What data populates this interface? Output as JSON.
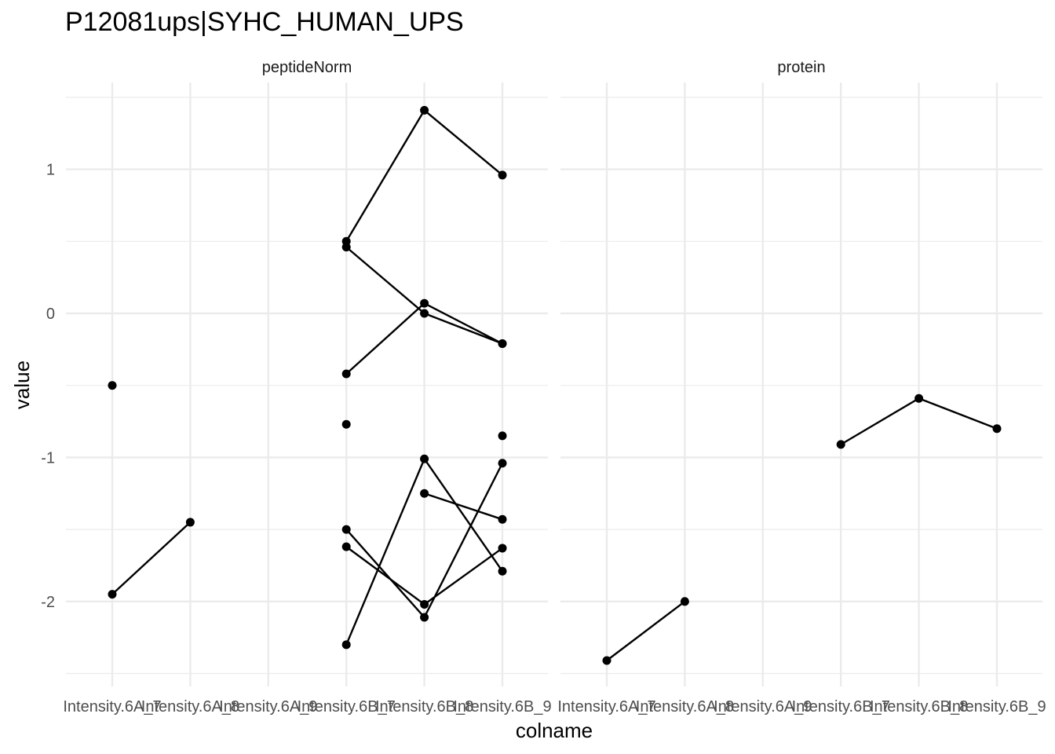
{
  "chart_data": {
    "type": "line",
    "title": "P12081ups|SYHC_HUMAN_UPS",
    "xlabel": "colname",
    "ylabel": "value",
    "x_categories": [
      "Intensity.6A_7",
      "Intensity.6A_8",
      "Intensity.6A_9",
      "Intensity.6B_7",
      "Intensity.6B_8",
      "Intensity.6B_9"
    ],
    "y_ticks": [
      -2,
      -1,
      0,
      1
    ],
    "ylim": [
      -2.5,
      1.5
    ],
    "grid": true,
    "legend": "none",
    "facets": [
      {
        "label": "peptideNorm",
        "series": [
          {
            "values": [
              -0.5,
              null,
              null,
              null,
              null,
              null
            ]
          },
          {
            "values": [
              -1.95,
              -1.45,
              null,
              null,
              null,
              null
            ]
          },
          {
            "values": [
              null,
              null,
              null,
              0.5,
              1.41,
              0.96
            ]
          },
          {
            "values": [
              null,
              null,
              null,
              0.46,
              0.0,
              -0.21
            ]
          },
          {
            "values": [
              null,
              null,
              null,
              -0.42,
              0.07,
              -0.21
            ]
          },
          {
            "values": [
              null,
              null,
              null,
              -0.77,
              null,
              null
            ]
          },
          {
            "values": [
              null,
              null,
              null,
              null,
              null,
              -0.85
            ]
          },
          {
            "values": [
              null,
              null,
              null,
              -1.5,
              -2.11,
              -1.04
            ]
          },
          {
            "values": [
              null,
              null,
              null,
              -1.62,
              -2.02,
              -1.63
            ]
          },
          {
            "values": [
              null,
              null,
              null,
              -2.3,
              -1.01,
              -1.79
            ]
          },
          {
            "values": [
              null,
              null,
              null,
              null,
              -1.25,
              -1.43
            ]
          }
        ]
      },
      {
        "label": "protein",
        "series": [
          {
            "values": [
              -2.41,
              -2.0,
              null,
              null,
              null,
              null
            ]
          },
          {
            "values": [
              null,
              null,
              null,
              -0.91,
              -0.59,
              -0.8
            ]
          }
        ]
      }
    ]
  }
}
